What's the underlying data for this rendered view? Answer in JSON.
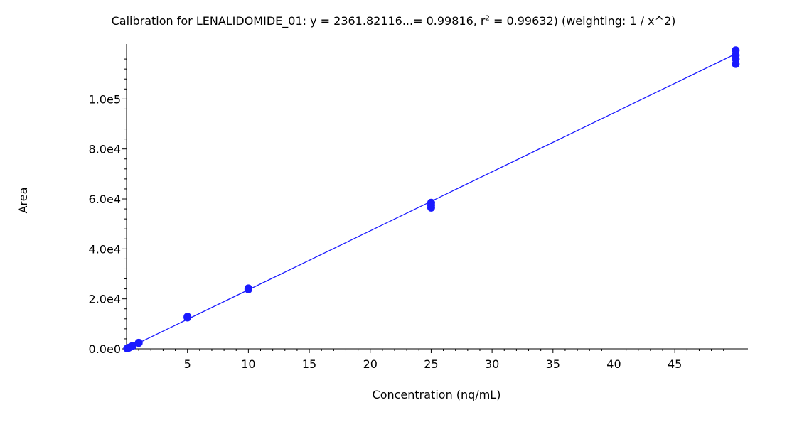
{
  "chart_data": {
    "type": "scatter",
    "title": {
      "prefix": "Calibration for LENALIDOMIDE_01: y = 2361.82116...= 0.99816, r",
      "superscript": "2",
      "suffix": " = 0.99632)  (weighting: 1 / x^2)"
    },
    "xlabel": "Concentration (nq/mL)",
    "ylabel": "Area",
    "xlim": [
      0,
      51
    ],
    "ylim": [
      0,
      122000
    ],
    "x_ticks": [
      5,
      10,
      15,
      20,
      25,
      30,
      35,
      40,
      45
    ],
    "x_tick_labels": [
      "5",
      "10",
      "15",
      "20",
      "25",
      "30",
      "35",
      "40",
      "45"
    ],
    "y_ticks": [
      0,
      20000,
      40000,
      60000,
      80000,
      100000
    ],
    "y_tick_labels": [
      "0.0e0",
      "2.0e4",
      "4.0e4",
      "6.0e4",
      "8.0e4",
      "1.0e5"
    ],
    "color": "#1a1aff",
    "grid": false,
    "fit_line": {
      "x": [
        0.05,
        50
      ],
      "y": [
        121,
        118091
      ]
    },
    "points": [
      {
        "x": 0.05,
        "y": 130
      },
      {
        "x": 0.1,
        "y": 250
      },
      {
        "x": 0.2,
        "y": 480
      },
      {
        "x": 0.5,
        "y": 1150
      },
      {
        "x": 0.5,
        "y": 1250
      },
      {
        "x": 1,
        "y": 2350
      },
      {
        "x": 1,
        "y": 2450
      },
      {
        "x": 5,
        "y": 12500
      },
      {
        "x": 5,
        "y": 12900
      },
      {
        "x": 10,
        "y": 23800
      },
      {
        "x": 10,
        "y": 24200
      },
      {
        "x": 25,
        "y": 56500
      },
      {
        "x": 25,
        "y": 57500
      },
      {
        "x": 25,
        "y": 58500
      },
      {
        "x": 50,
        "y": 114000
      },
      {
        "x": 50,
        "y": 116000
      },
      {
        "x": 50,
        "y": 117500
      },
      {
        "x": 50,
        "y": 119500
      }
    ]
  }
}
